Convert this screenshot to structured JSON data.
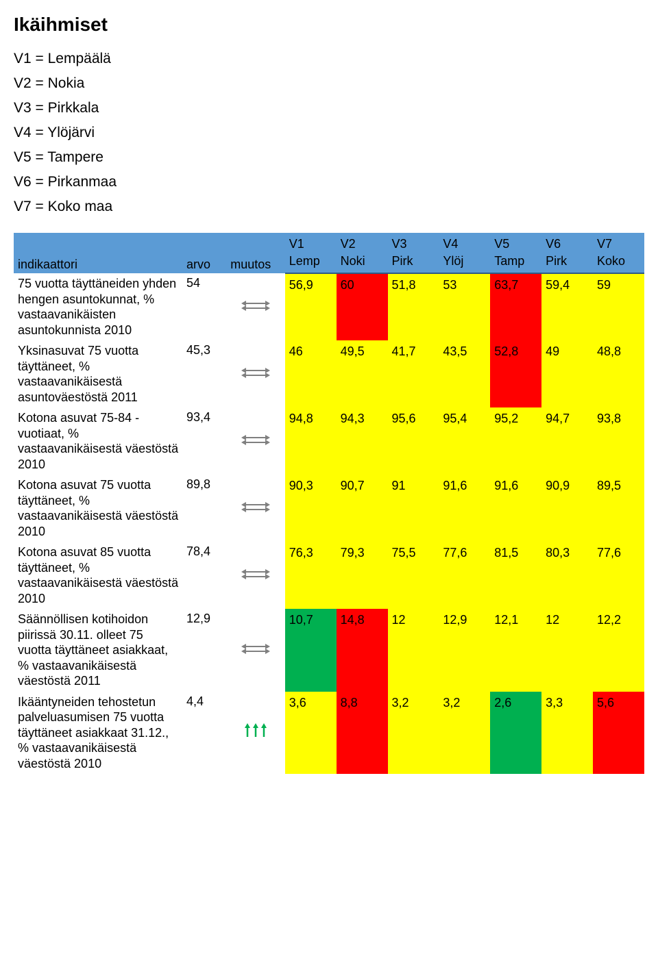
{
  "title": "Ikäihmiset",
  "legend": [
    "V1 = Lempäälä",
    "V2 = Nokia",
    "V3 = Pirkkala",
    "V4 = Ylöjärvi",
    "V5 = Tampere",
    "V6 = Pirkanmaa",
    "V7 = Koko maa"
  ],
  "header": {
    "col_indikaattori": "indikaattori",
    "col_arvo": "arvo",
    "col_muutos": "muutos",
    "row1": [
      "V1",
      "V2",
      "V3",
      "V4",
      "V5",
      "V6",
      "V7"
    ],
    "row2": [
      "Lemp",
      "Noki",
      "Pirk",
      "Ylöj",
      "Tamp",
      "Pirk",
      "Koko"
    ]
  },
  "colors": {
    "header_bg": "#5b9bd5",
    "header_border": "#2e5a87",
    "yellow": "#ffff00",
    "red": "#ff0000",
    "green": "#00b050",
    "white": "#ffffff",
    "arrow_gray": "#808080",
    "arrow_green": "#00b050"
  },
  "rows": [
    {
      "label": "75 vuotta täyttäneiden yhden hengen asuntokunnat, % vastaavanikäisten asuntokunnista 2010",
      "arvo": "54",
      "muutos": "hbar",
      "cells": [
        {
          "v": "56,9",
          "c": "yellow"
        },
        {
          "v": "60",
          "c": "red"
        },
        {
          "v": "51,8",
          "c": "yellow"
        },
        {
          "v": "53",
          "c": "yellow"
        },
        {
          "v": "63,7",
          "c": "red"
        },
        {
          "v": "59,4",
          "c": "yellow"
        },
        {
          "v": "59",
          "c": "yellow"
        }
      ]
    },
    {
      "label": "Yksinasuvat 75 vuotta täyttäneet, % vastaavanikäisestä asuntoväestöstä 2011",
      "arvo": "45,3",
      "muutos": "hbar",
      "cells": [
        {
          "v": "46",
          "c": "yellow"
        },
        {
          "v": "49,5",
          "c": "yellow"
        },
        {
          "v": "41,7",
          "c": "yellow"
        },
        {
          "v": "43,5",
          "c": "yellow"
        },
        {
          "v": "52,8",
          "c": "red"
        },
        {
          "v": "49",
          "c": "yellow"
        },
        {
          "v": "48,8",
          "c": "yellow"
        }
      ]
    },
    {
      "label": "Kotona asuvat 75-84 -vuotiaat, % vastaavanikäisestä väestöstä 2010",
      "arvo": "93,4",
      "muutos": "hbar",
      "cells": [
        {
          "v": "94,8",
          "c": "yellow"
        },
        {
          "v": "94,3",
          "c": "yellow"
        },
        {
          "v": "95,6",
          "c": "yellow"
        },
        {
          "v": "95,4",
          "c": "yellow"
        },
        {
          "v": "95,2",
          "c": "yellow"
        },
        {
          "v": "94,7",
          "c": "yellow"
        },
        {
          "v": "93,8",
          "c": "yellow"
        }
      ]
    },
    {
      "label": "Kotona asuvat 75 vuotta täyttäneet, % vastaavanikäisestä väestöstä 2010",
      "arvo": "89,8",
      "muutos": "hbar",
      "cells": [
        {
          "v": "90,3",
          "c": "yellow"
        },
        {
          "v": "90,7",
          "c": "yellow"
        },
        {
          "v": "91",
          "c": "yellow"
        },
        {
          "v": "91,6",
          "c": "yellow"
        },
        {
          "v": "91,6",
          "c": "yellow"
        },
        {
          "v": "90,9",
          "c": "yellow"
        },
        {
          "v": "89,5",
          "c": "yellow"
        }
      ]
    },
    {
      "label": "Kotona asuvat 85 vuotta täyttäneet, % vastaavanikäisestä väestöstä 2010",
      "arvo": "78,4",
      "muutos": "hbar",
      "cells": [
        {
          "v": "76,3",
          "c": "yellow"
        },
        {
          "v": "79,3",
          "c": "yellow"
        },
        {
          "v": "75,5",
          "c": "yellow"
        },
        {
          "v": "77,6",
          "c": "yellow"
        },
        {
          "v": "81,5",
          "c": "yellow"
        },
        {
          "v": "80,3",
          "c": "yellow"
        },
        {
          "v": "77,6",
          "c": "yellow"
        }
      ]
    },
    {
      "label": "Säännöllisen kotihoidon piirissä 30.11. olleet 75 vuotta täyttäneet asiakkaat, % vastaavanikäisestä väestöstä 2011",
      "arvo": "12,9",
      "muutos": "hbar",
      "cells": [
        {
          "v": "10,7",
          "c": "green"
        },
        {
          "v": "14,8",
          "c": "red"
        },
        {
          "v": "12",
          "c": "yellow"
        },
        {
          "v": "12,9",
          "c": "yellow"
        },
        {
          "v": "12,1",
          "c": "yellow"
        },
        {
          "v": "12",
          "c": "yellow"
        },
        {
          "v": "12,2",
          "c": "yellow"
        }
      ]
    },
    {
      "label": "Ikääntyneiden tehostetun palveluasumisen 75 vuotta täyttäneet asiakkaat 31.12., % vastaavanikäisestä väestöstä 2010",
      "arvo": "4,4",
      "muutos": "up",
      "cells": [
        {
          "v": "3,6",
          "c": "yellow"
        },
        {
          "v": "8,8",
          "c": "red"
        },
        {
          "v": "3,2",
          "c": "yellow"
        },
        {
          "v": "3,2",
          "c": "yellow"
        },
        {
          "v": "2,6",
          "c": "green"
        },
        {
          "v": "3,3",
          "c": "yellow"
        },
        {
          "v": "5,6",
          "c": "red"
        }
      ]
    }
  ]
}
